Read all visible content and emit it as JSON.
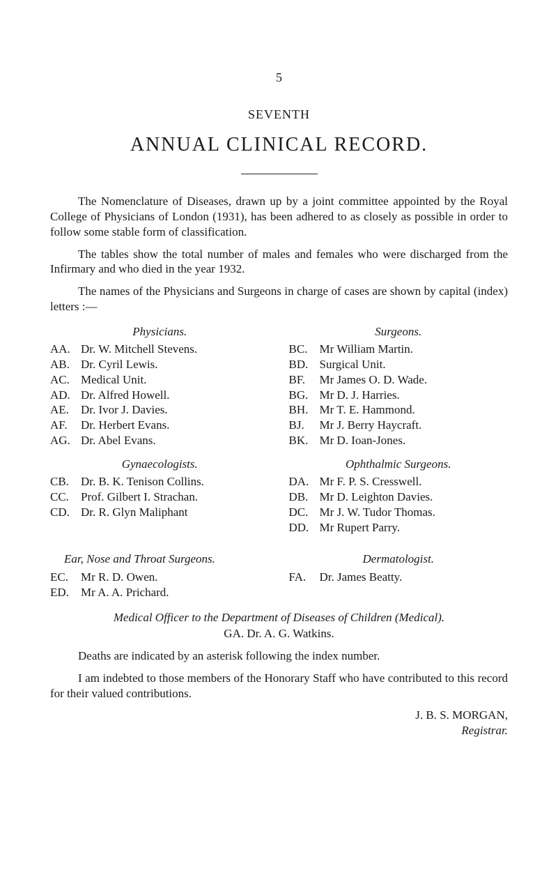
{
  "pageNumber": "5",
  "seventh": "SEVENTH",
  "title": "ANNUAL   CLINICAL   RECORD.",
  "para1": "The Nomenclature of Diseases, drawn up by a joint com­mittee appointed by the Royal College of Physicians of London (1931), has been adhered to as closely as possible in order to follow some stable form of classification.",
  "para2": "The tables show the total number of males and females who were discharged from the Infirmary and who died in the year 1932.",
  "para3": "The names of the Physicians and Surgeons in charge of cases are shown by capital (index) letters :—",
  "physiciansHead": "Physicians.",
  "surgeonsHead": "Surgeons.",
  "physicians": [
    {
      "code": "AA.",
      "name": "Dr. W. Mitchell Stevens."
    },
    {
      "code": "AB.",
      "name": "Dr. Cyril Lewis."
    },
    {
      "code": "AC.",
      "name": "Medical Unit."
    },
    {
      "code": "AD.",
      "name": "Dr. Alfred Howell."
    },
    {
      "code": "AE.",
      "name": "Dr. Ivor J. Davies."
    },
    {
      "code": "AF.",
      "name": "Dr. Herbert Evans."
    },
    {
      "code": "AG.",
      "name": "Dr. Abel Evans."
    }
  ],
  "surgeons": [
    {
      "code": "BC.",
      "name": "Mr William Martin."
    },
    {
      "code": "BD.",
      "name": "Surgical Unit."
    },
    {
      "code": "BF.",
      "name": "Mr James O. D. Wade."
    },
    {
      "code": "BG.",
      "name": "Mr D. J. Harries."
    },
    {
      "code": "BH.",
      "name": "Mr T. E. Hammond."
    },
    {
      "code": "BJ.",
      "name": "Mr J. Berry Haycraft."
    },
    {
      "code": "BK.",
      "name": "Mr D. Ioan-Jones."
    }
  ],
  "gynaeHead": "Gynaecologists.",
  "ophthHead": "Ophthalmic Surgeons.",
  "gynae": [
    {
      "code": "CB.",
      "name": "Dr. B. K. Tenison Collins."
    },
    {
      "code": "CC.",
      "name": "Prof. Gilbert I. Strachan."
    },
    {
      "code": "CD.",
      "name": "Dr. R. Glyn Maliphant"
    }
  ],
  "ophth": [
    {
      "code": "DA.",
      "name": "Mr F. P. S. Cresswell."
    },
    {
      "code": "DB.",
      "name": "Mr D. Leighton Davies."
    },
    {
      "code": "DC.",
      "name": "Mr J. W. Tudor Thomas."
    },
    {
      "code": "DD.",
      "name": "Mr Rupert Parry."
    }
  ],
  "entHead": "Ear, Nose and Throat Surgeons.",
  "dermHead": "Dermatologist.",
  "ent": [
    {
      "code": "EC.",
      "name": "Mr R. D. Owen."
    },
    {
      "code": "ED.",
      "name": "Mr A. A. Prichard."
    }
  ],
  "derm": [
    {
      "code": "FA.",
      "name": "Dr. James Beatty."
    }
  ],
  "medicalOfficerLine": "Medical Officer to the Department of Diseases of Children (Medical).",
  "medicalOfficerName": "GA.   Dr. A. G. Watkins.",
  "deathsPara": "Deaths are indicated by an asterisk following the index number.",
  "indebtedPara": "I am indebted to those members of the Honorary Staff who have contributed to this record for their valued contributions.",
  "signatureName": "J. B. S. MORGAN,",
  "signatureRole": "Registrar."
}
